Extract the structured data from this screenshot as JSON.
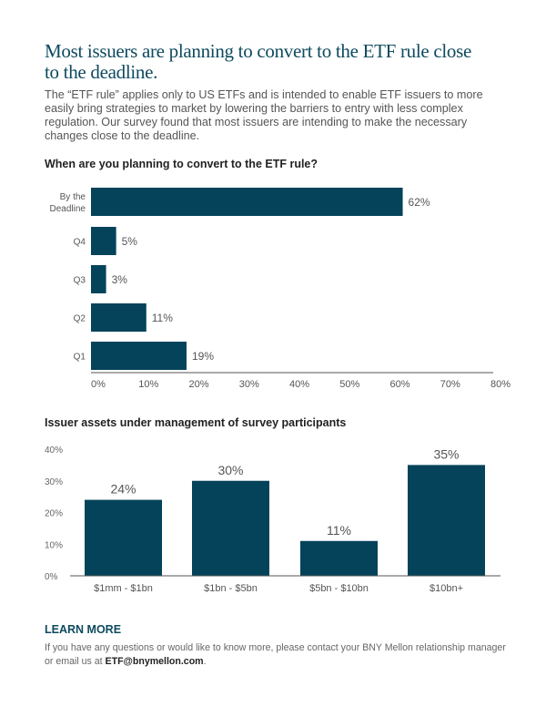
{
  "title": "Most issuers are planning to convert to the ETF rule close to the deadline.",
  "intro": "The “ETF rule” applies only to US ETFs and is intended to enable ETF issuers to more easily bring strategies to market by lowering the barriers to entry with less complex regulation. Our survey found that most issuers are intending to make the necessary changes close to the deadline.",
  "colors": {
    "bar": "#04435a",
    "title": "#0d4a5e"
  },
  "chart_data": [
    {
      "type": "bar",
      "orientation": "horizontal",
      "title": "When are you planning to convert to the ETF rule?",
      "categories": [
        "By the Deadline",
        "Q4",
        "Q3",
        "Q2",
        "Q1"
      ],
      "category_lines": [
        [
          "By the",
          "Deadline"
        ],
        [
          "Q4"
        ],
        [
          "Q3"
        ],
        [
          "Q2"
        ],
        [
          "Q1"
        ]
      ],
      "values": [
        62,
        5,
        3,
        11,
        19
      ],
      "data_labels": [
        "62%",
        "5%",
        "3%",
        "11%",
        "19%"
      ],
      "xlim": [
        0,
        80
      ],
      "x_ticks": [
        "0%",
        "10%",
        "20%",
        "30%",
        "40%",
        "50%",
        "60%",
        "70%",
        "80%"
      ],
      "grid": false
    },
    {
      "type": "bar",
      "orientation": "vertical",
      "title": "Issuer assets under management of survey participants",
      "categories": [
        "$1mm - $1bn",
        "$1bn - $5bn",
        "$5bn - $10bn",
        "$10bn+"
      ],
      "values": [
        24,
        30,
        11,
        35
      ],
      "data_labels": [
        "24%",
        "30%",
        "11%",
        "35%"
      ],
      "ylim": [
        0,
        40
      ],
      "y_ticks": [
        "0%",
        "10%",
        "20%",
        "30%",
        "40%"
      ],
      "grid": false
    }
  ],
  "learn_more": {
    "heading": "LEARN MORE",
    "text": "If you have any questions or would like to know more, please contact your BNY Mellon relationship manager or email us at ",
    "email": "ETF@bnymellon.com",
    "end": "."
  }
}
